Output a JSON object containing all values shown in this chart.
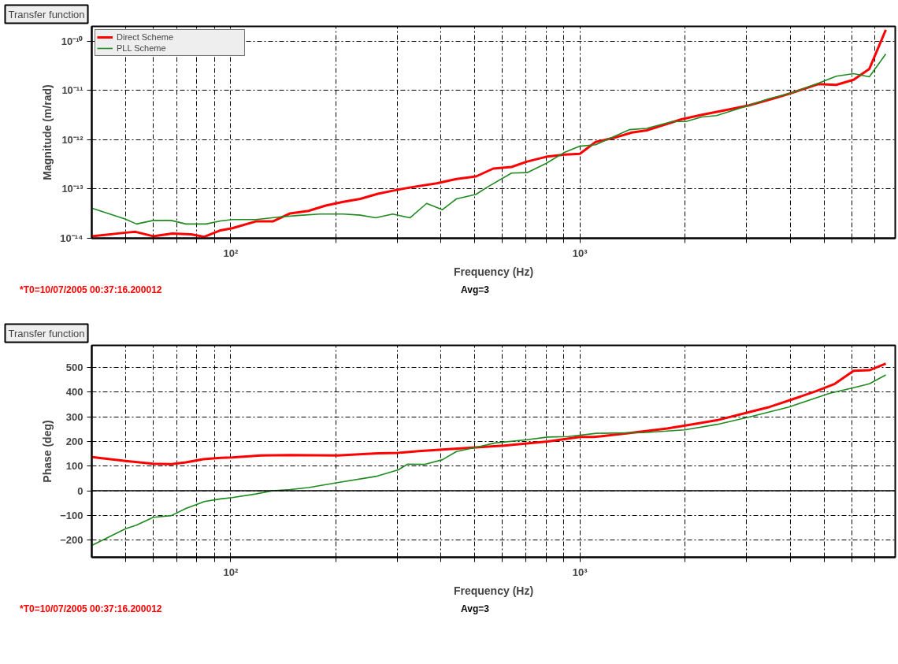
{
  "chart_data": [
    {
      "type": "line",
      "title": "Transfer function",
      "xlabel": "Frequency (Hz)",
      "ylabel": "Magnitude (m/rad)",
      "log": "xy",
      "grid": true,
      "legend": "top left",
      "line_style": "solid",
      "xlim": [
        40,
        8000
      ],
      "ylim": [
        1e-14,
        2e-10
      ],
      "xticks": [
        {
          "value": 50,
          "label": null
        },
        {
          "value": 60,
          "label": null
        },
        {
          "value": 70,
          "label": null
        },
        {
          "value": 80,
          "label": null
        },
        {
          "value": 90,
          "label": null
        },
        {
          "value": 100,
          "label": "10²"
        },
        {
          "value": 200,
          "label": null
        },
        {
          "value": 300,
          "label": null
        },
        {
          "value": 400,
          "label": null
        },
        {
          "value": 500,
          "label": null
        },
        {
          "value": 600,
          "label": null
        },
        {
          "value": 700,
          "label": null
        },
        {
          "value": 800,
          "label": null
        },
        {
          "value": 900,
          "label": null
        },
        {
          "value": 1000,
          "label": "10³"
        },
        {
          "value": 2000,
          "label": null
        },
        {
          "value": 3000,
          "label": null
        },
        {
          "value": 4000,
          "label": null
        },
        {
          "value": 5000,
          "label": null
        },
        {
          "value": 6000,
          "label": null
        },
        {
          "value": 7000,
          "label": null
        }
      ],
      "yticks": [
        {
          "value": 1e-14,
          "label": "10⁻¹⁴"
        },
        {
          "value": 1e-13,
          "label": "10⁻¹³"
        },
        {
          "value": 1e-12,
          "label": "10⁻¹²"
        },
        {
          "value": 1e-11,
          "label": "10⁻¹¹"
        },
        {
          "value": 1e-10,
          "label": "10⁻¹⁰"
        }
      ],
      "annotations": [
        "*T0=10/07/2005 00:37:16.200012",
        "Avg=3"
      ],
      "series": [
        {
          "name": "Direct Scheme",
          "color": "#ff0000",
          "x": [
            40,
            50,
            53.4,
            60,
            68,
            77,
            84,
            93.5,
            101,
            118,
            132,
            148,
            167,
            187,
            210,
            235,
            264,
            297,
            333,
            389,
            443,
            504,
            565,
            637,
            706,
            800,
            906,
            1000,
            1109,
            1256,
            1409,
            1553,
            1953,
            2234,
            2706,
            3050,
            3620,
            4057,
            4813,
            5422,
            6080,
            6745,
            7517
          ],
          "values": [
            1.1e-14,
            1.3e-14,
            1.35e-14,
            1.1e-14,
            1.25e-14,
            1.2e-14,
            1.07e-14,
            1.45e-14,
            1.6e-14,
            2.2e-14,
            2.2e-14,
            3.2e-14,
            3.6e-14,
            4.6e-14,
            5.5e-14,
            6.3e-14,
            8e-14,
            9.5e-14,
            1.1e-13,
            1.3e-13,
            1.6e-13,
            1.8e-13,
            2.6e-13,
            2.8e-13,
            3.6e-13,
            4.5e-13,
            5e-13,
            5.2e-13,
            9e-13,
            1.1e-12,
            1.4e-12,
            1.55e-12,
            2.6e-12,
            3.2e-12,
            4.2e-12,
            5e-12,
            7e-12,
            9e-12,
            1.35e-11,
            1.3e-11,
            1.65e-11,
            2.75e-11,
            1.7e-10
          ]
        },
        {
          "name": "PLL Scheme",
          "color": "#1f8a1f",
          "x": [
            40,
            50,
            53.7,
            60,
            67.6,
            74.4,
            85,
            93.5,
            101,
            118,
            138,
            155,
            180,
            210,
            235,
            260,
            291,
            326,
            364,
            404,
            443,
            504,
            544,
            637,
            706,
            800,
            906,
            1000,
            1109,
            1384,
            1553,
            1842,
            2012,
            2234,
            2463,
            3050,
            3483,
            4057,
            4813,
            5422,
            6080,
            6745,
            7517
          ],
          "values": [
            4.1e-14,
            2.45e-14,
            1.95e-14,
            2.3e-14,
            2.3e-14,
            1.95e-14,
            1.95e-14,
            2.25e-14,
            2.4e-14,
            2.4e-14,
            2.7e-14,
            2.9e-14,
            3.1e-14,
            3.1e-14,
            2.95e-14,
            2.6e-14,
            3.1e-14,
            2.6e-14,
            5.1e-14,
            3.8e-14,
            6.3e-14,
            7.8e-14,
            1.1e-13,
            2.1e-13,
            2.15e-13,
            3.3e-13,
            5.6e-13,
            7.4e-13,
            7.9e-13,
            1.6e-12,
            1.7e-12,
            2.35e-12,
            2.35e-12,
            2.9e-12,
            3.1e-12,
            5e-12,
            6.8e-12,
            9e-12,
            1.4e-11,
            1.95e-11,
            2.2e-11,
            1.9e-11,
            5.5e-11
          ]
        }
      ]
    },
    {
      "type": "line",
      "title": "Transfer function",
      "xlabel": "Frequency (Hz)",
      "ylabel": "Phase (deg)",
      "log": "x",
      "grid": true,
      "line_style": "solid",
      "xlim": [
        40,
        8000
      ],
      "ylim": [
        -270,
        590
      ],
      "xticks": [
        {
          "value": 50,
          "label": null
        },
        {
          "value": 60,
          "label": null
        },
        {
          "value": 70,
          "label": null
        },
        {
          "value": 80,
          "label": null
        },
        {
          "value": 90,
          "label": null
        },
        {
          "value": 100,
          "label": "10²"
        },
        {
          "value": 200,
          "label": null
        },
        {
          "value": 300,
          "label": null
        },
        {
          "value": 400,
          "label": null
        },
        {
          "value": 500,
          "label": null
        },
        {
          "value": 600,
          "label": null
        },
        {
          "value": 700,
          "label": null
        },
        {
          "value": 800,
          "label": null
        },
        {
          "value": 900,
          "label": null
        },
        {
          "value": 1000,
          "label": "10³"
        },
        {
          "value": 2000,
          "label": null
        },
        {
          "value": 3000,
          "label": null
        },
        {
          "value": 4000,
          "label": null
        },
        {
          "value": 5000,
          "label": null
        },
        {
          "value": 6000,
          "label": null
        },
        {
          "value": 7000,
          "label": null
        }
      ],
      "yticks": [
        -200,
        -100,
        0,
        100,
        200,
        300,
        400,
        500
      ],
      "ref_lines": [
        {
          "axis": "y",
          "value": 0,
          "color": "#000000",
          "line_style": "solid"
        }
      ],
      "annotations": [
        "*T0=10/07/2005 00:37:16.200012",
        "Avg=3"
      ],
      "series": [
        {
          "color": "#ff0000",
          "x": [
            40,
            50,
            60,
            67.6,
            74.4,
            83.4,
            93.5,
            101,
            122,
            148,
            202,
            264,
            302,
            345,
            404,
            504,
            606,
            809,
            1000,
            1098,
            1359,
            1778,
            2035,
            2466,
            3050,
            3490,
            4057,
            4745,
            5370,
            6080,
            6745,
            7517
          ],
          "values": [
            137,
            121,
            110,
            108,
            115,
            128,
            134,
            135,
            143,
            145,
            143,
            152,
            154,
            161,
            167,
            176,
            183,
            200,
            218,
            218,
            233,
            253,
            266,
            286,
            319,
            340,
            371,
            404,
            434,
            487,
            489,
            516
          ]
        },
        {
          "color": "#1f8a1f",
          "x": [
            40,
            50,
            53.7,
            60,
            67.6,
            74.4,
            84,
            93.5,
            101,
            118,
            132,
            148,
            167,
            202,
            260,
            302,
            321,
            360,
            404,
            443,
            504,
            571,
            706,
            809,
            925,
            1114,
            1521,
            1995,
            2466,
            3050,
            3970,
            5200,
            6080,
            6745,
            7517
          ],
          "values": [
            -222,
            -154,
            -140,
            -108,
            -101,
            -72,
            -44,
            -33,
            -28,
            -13,
            0,
            5,
            13,
            33,
            58,
            85,
            108,
            107,
            126,
            159,
            176,
            194,
            207,
            218,
            220,
            233,
            236,
            247,
            269,
            299,
            340,
            396,
            418,
            434,
            470
          ]
        }
      ]
    }
  ]
}
